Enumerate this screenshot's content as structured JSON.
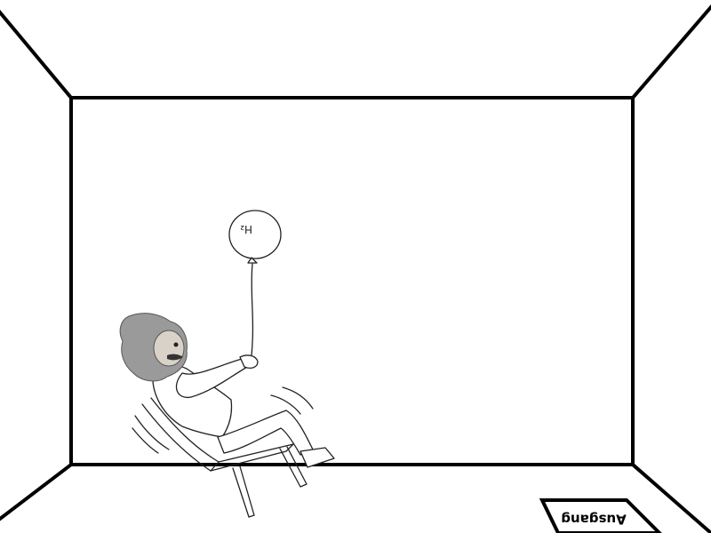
{
  "exit_sign": {
    "text": "Ausgang",
    "orientation": "upside-down"
  },
  "balloon": {
    "label": "H₂"
  },
  "colors": {
    "background": "#ffffff",
    "ink": "#000000"
  }
}
